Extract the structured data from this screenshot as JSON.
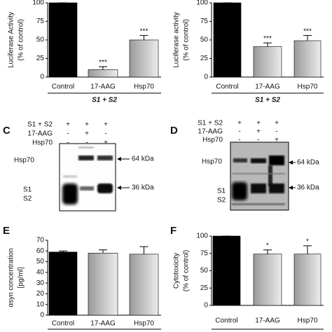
{
  "chart_data": [
    {
      "type": "bar",
      "ylabel": [
        "Luciferase Activity",
        "(% of control)"
      ],
      "categories": [
        "Control",
        "17-AAG",
        "Hsp70"
      ],
      "values": [
        100,
        10,
        50
      ],
      "errors": [
        0,
        4,
        6
      ],
      "annotations": [
        null,
        "***",
        "***"
      ],
      "colors": [
        "#000000",
        "#9a9a9a",
        "#9a9a9a"
      ],
      "ylim": [
        0,
        100
      ],
      "yticks": [
        0,
        25,
        50,
        75,
        100
      ],
      "group_label": "S1 + S2"
    },
    {
      "type": "bar",
      "ylabel": [
        "Luciferase activity",
        "(% of control)"
      ],
      "categories": [
        "Control",
        "17-AAG",
        "Hsp70"
      ],
      "values": [
        100,
        41,
        49
      ],
      "errors": [
        0,
        5,
        7
      ],
      "annotations": [
        null,
        "***",
        "***"
      ],
      "colors": [
        "#000000",
        "#9a9a9a",
        "#9a9a9a"
      ],
      "ylim": [
        0,
        100
      ],
      "yticks": [
        0,
        25,
        50,
        75,
        100
      ],
      "group_label": "S1 + S2"
    },
    {
      "type": "bar",
      "panel": "E",
      "ylabel": [
        "αsyn concentration",
        "[pg/ml]"
      ],
      "categories": [
        "Control",
        "17-AAG",
        "Hsp70"
      ],
      "values": [
        59,
        58,
        57
      ],
      "errors": [
        1,
        3,
        7
      ],
      "annotations": [
        null,
        null,
        null
      ],
      "colors": [
        "#000000",
        "#9a9a9a",
        "#9a9a9a"
      ],
      "ylim": [
        0,
        70
      ],
      "yticks": [
        0,
        10,
        20,
        30,
        40,
        50,
        60,
        70
      ]
    },
    {
      "type": "bar",
      "panel": "F",
      "ylabel": [
        "Cytotoxicity",
        "(% of control)"
      ],
      "categories": [
        "Control",
        "17-AAG",
        "Hsp70"
      ],
      "values": [
        100,
        74,
        74
      ],
      "errors": [
        0,
        6,
        12
      ],
      "annotations": [
        null,
        "*",
        "*"
      ],
      "colors": [
        "#000000",
        "#9a9a9a",
        "#9a9a9a"
      ],
      "ylim": [
        0,
        100
      ],
      "yticks": [
        0,
        25,
        50,
        75,
        100
      ]
    }
  ],
  "blots": [
    {
      "panel": "C",
      "rows": [
        {
          "label": "S1 + S2",
          "marks": [
            "+",
            "+",
            "+"
          ]
        },
        {
          "label": "17-AAG",
          "marks": [
            "-",
            "+",
            "-"
          ]
        },
        {
          "label": "Hsp70",
          "marks": [
            "-",
            "-",
            "+"
          ]
        }
      ],
      "band_labels": [
        "Hsp70",
        "S1",
        "S2"
      ],
      "markers": [
        "64 kDa",
        "36 kDa"
      ]
    },
    {
      "panel": "D",
      "rows": [
        {
          "label": "S1 + S2",
          "marks": [
            "+",
            "+",
            "+"
          ]
        },
        {
          "label": "17-AAG",
          "marks": [
            "-",
            "+",
            "-"
          ]
        },
        {
          "label": "Hsp70",
          "marks": [
            "-",
            "-",
            "+"
          ]
        }
      ],
      "band_labels": [
        "Hsp70",
        "S1",
        "S2"
      ],
      "markers": [
        "64 kDa",
        "36 kDa"
      ]
    }
  ]
}
